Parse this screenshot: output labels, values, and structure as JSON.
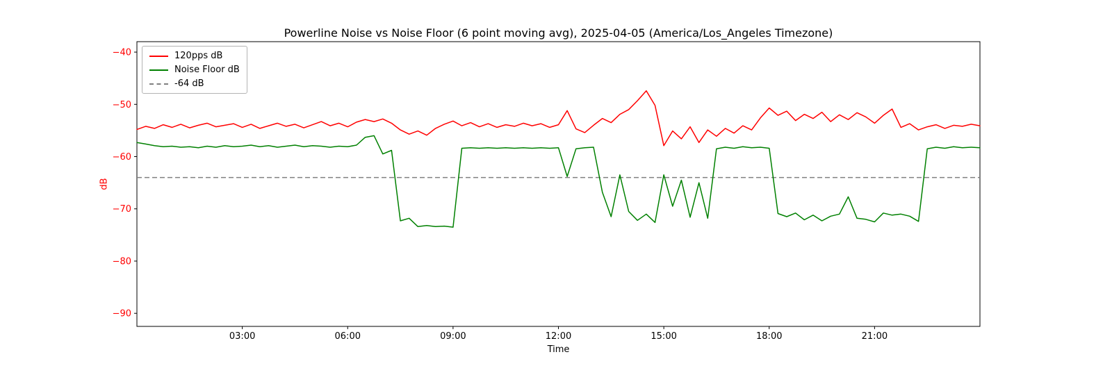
{
  "chart_data": {
    "type": "line",
    "title": "Powerline Noise vs Noise Floor (6 point moving avg), 2025-04-05 (America/Los_Angeles Timezone)",
    "xlabel": "Time",
    "ylabel": "dB",
    "xlim": [
      0,
      24
    ],
    "ylim": [
      -92.5,
      -38
    ],
    "grid": false,
    "legend_position": "upper left",
    "y_axis_color": "#ff0000",
    "frame_color": "#000000",
    "x_ticks": [
      3,
      6,
      9,
      12,
      15,
      18,
      21
    ],
    "x_tick_labels": [
      "03:00",
      "06:00",
      "09:00",
      "12:00",
      "15:00",
      "18:00",
      "21:00"
    ],
    "y_ticks": [
      -40,
      -50,
      -60,
      -70,
      -80,
      -90
    ],
    "y_tick_labels": [
      "−40",
      "−50",
      "−60",
      "−70",
      "−80",
      "−90"
    ],
    "threshold": {
      "label": "-64 dB",
      "value": -64,
      "color": "#808080",
      "dash": true
    },
    "x": [
      0,
      0.25,
      0.5,
      0.75,
      1,
      1.25,
      1.5,
      1.75,
      2,
      2.25,
      2.5,
      2.75,
      3,
      3.25,
      3.5,
      3.75,
      4,
      4.25,
      4.5,
      4.75,
      5,
      5.25,
      5.5,
      5.75,
      6,
      6.25,
      6.5,
      6.75,
      7,
      7.25,
      7.5,
      7.75,
      8,
      8.25,
      8.5,
      8.75,
      9,
      9.25,
      9.5,
      9.75,
      10,
      10.25,
      10.5,
      10.75,
      11,
      11.25,
      11.5,
      11.75,
      12,
      12.25,
      12.5,
      12.75,
      13,
      13.25,
      13.5,
      13.75,
      14,
      14.25,
      14.5,
      14.75,
      15,
      15.25,
      15.5,
      15.75,
      16,
      16.25,
      16.5,
      16.75,
      17,
      17.25,
      17.5,
      17.75,
      18,
      18.25,
      18.5,
      18.75,
      19,
      19.25,
      19.5,
      19.75,
      20,
      20.25,
      20.5,
      20.75,
      21,
      21.25,
      21.5,
      21.75,
      22,
      22.25,
      22.5,
      22.75,
      23,
      23.25,
      23.5,
      23.75,
      24
    ],
    "series": [
      {
        "name": "120pps dB",
        "color": "#ff0000",
        "dash": false,
        "values": [
          -54.8,
          -54.2,
          -54.6,
          -53.9,
          -54.4,
          -53.8,
          -54.5,
          -54,
          -53.6,
          -54.3,
          -54,
          -53.7,
          -54.4,
          -53.8,
          -54.6,
          -54.1,
          -53.6,
          -54.2,
          -53.8,
          -54.5,
          -53.9,
          -53.3,
          -54.1,
          -53.6,
          -54.3,
          -53.4,
          -52.9,
          -53.3,
          -52.8,
          -53.6,
          -54.9,
          -55.7,
          -55.1,
          -55.9,
          -54.6,
          -53.8,
          -53.2,
          -54.1,
          -53.5,
          -54.3,
          -53.7,
          -54.4,
          -53.9,
          -54.2,
          -53.6,
          -54.1,
          -53.7,
          -54.4,
          -53.9,
          -51.2,
          -54.7,
          -55.4,
          -54,
          -52.7,
          -53.5,
          -51.9,
          -51,
          -49.3,
          -47.4,
          -50.2,
          -57.9,
          -55.1,
          -56.6,
          -54.3,
          -57.3,
          -54.9,
          -56.1,
          -54.6,
          -55.5,
          -54.1,
          -54.9,
          -52.6,
          -50.7,
          -52.1,
          -51.3,
          -53.1,
          -51.9,
          -52.7,
          -51.5,
          -53.3,
          -52,
          -52.9,
          -51.6,
          -52.4,
          -53.6,
          -52.1,
          -50.9,
          -54.4,
          -53.7,
          -54.9,
          -54.3,
          -53.9,
          -54.6,
          -54,
          -54.2,
          -53.8,
          -54.1
        ]
      },
      {
        "name": "Noise Floor dB",
        "color": "#008000",
        "dash": false,
        "values": [
          -57.3,
          -57.6,
          -57.9,
          -58.1,
          -58,
          -58.2,
          -58.1,
          -58.3,
          -58,
          -58.2,
          -57.9,
          -58.1,
          -58,
          -57.8,
          -58.1,
          -57.9,
          -58.2,
          -58,
          -57.8,
          -58.1,
          -57.9,
          -58,
          -58.2,
          -58,
          -58.1,
          -57.8,
          -56.3,
          -56,
          -59.5,
          -58.8,
          -72.3,
          -71.8,
          -73.4,
          -73.2,
          -73.4,
          -73.3,
          -73.5,
          -58.4,
          -58.3,
          -58.4,
          -58.3,
          -58.4,
          -58.3,
          -58.4,
          -58.3,
          -58.4,
          -58.3,
          -58.4,
          -58.3,
          -63.8,
          -58.5,
          -58.3,
          -58.2,
          -66.8,
          -71.5,
          -63.5,
          -70.5,
          -72.2,
          -71,
          -72.6,
          -63.5,
          -69.5,
          -64.5,
          -71.6,
          -65,
          -71.8,
          -58.5,
          -58.2,
          -58.4,
          -58.1,
          -58.3,
          -58.2,
          -58.4,
          -70.9,
          -71.5,
          -70.8,
          -72.1,
          -71.2,
          -72.3,
          -71.4,
          -71,
          -67.7,
          -71.8,
          -72,
          -72.5,
          -70.8,
          -71.2,
          -71,
          -71.4,
          -72.4,
          -58.5,
          -58.2,
          -58.4,
          -58.1,
          -58.3,
          -58.2,
          -58.3
        ]
      }
    ]
  }
}
